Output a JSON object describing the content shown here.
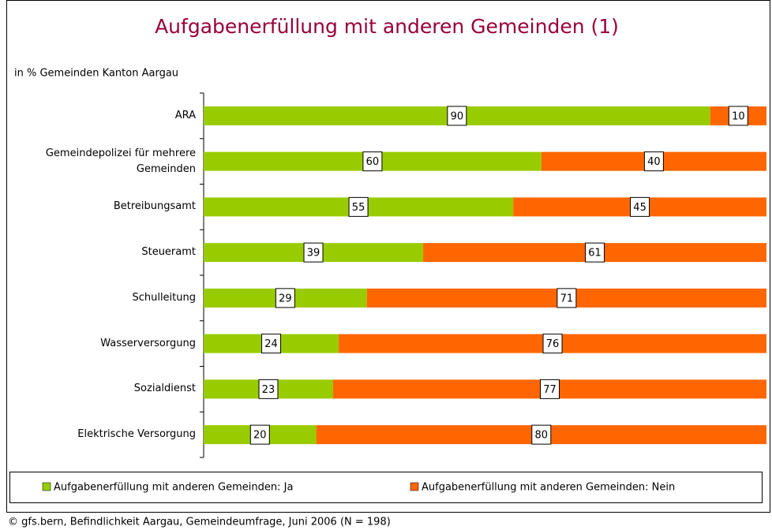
{
  "chart_data": {
    "type": "stacked_bar_horizontal",
    "title": "Aufgabenerfüllung mit anderen Gemeinden (1)",
    "subtitle": "in % Gemeinden Kanton Aargau",
    "categories": [
      "ARA",
      "Gemeindepolizei für mehrere Gemeinden",
      "Betreibungsamt",
      "Steueramt",
      "Schulleitung",
      "Wasserversorgung",
      "Sozialdienst",
      "Elektrische Versorgung"
    ],
    "series": [
      {
        "name": "Aufgabenerfüllung mit anderen Gemeinden: Ja",
        "color": "#99cc00",
        "values": [
          90,
          60,
          55,
          39,
          29,
          24,
          23,
          20
        ]
      },
      {
        "name": "Aufgabenerfüllung mit anderen Gemeinden: Nein",
        "color": "#ff6600",
        "values": [
          10,
          40,
          45,
          61,
          71,
          76,
          77,
          80
        ]
      }
    ],
    "xlim": [
      0,
      100
    ],
    "footer": "© gfs.bern, Befindlichkeit Aargau, Gemeindeumfrage, Juni 2006 (N = 198)"
  }
}
